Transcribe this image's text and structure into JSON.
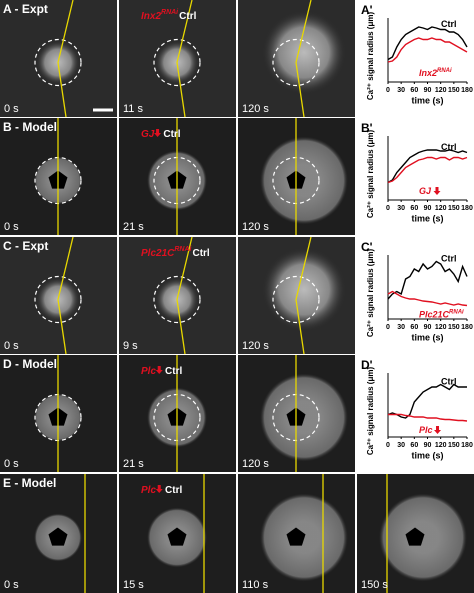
{
  "figure": {
    "rows": [
      {
        "label": "A - Expt",
        "frames": [
          {
            "time": "0 s"
          },
          {
            "time": "11 s",
            "annotation": {
              "mutant": "Inx2",
              "sup": "RNAi",
              "control": "Ctrl"
            }
          },
          {
            "time": "120 s"
          }
        ]
      },
      {
        "label": "B - Model",
        "frames": [
          {
            "time": "0 s"
          },
          {
            "time": "21 s",
            "annotation": {
              "mutant": "GJ",
              "control": "Ctrl"
            }
          },
          {
            "time": "120 s"
          }
        ]
      },
      {
        "label": "C - Expt",
        "frames": [
          {
            "time": "0 s"
          },
          {
            "time": "9 s",
            "annotation": {
              "mutant": "Plc21C",
              "sup": "RNAi",
              "control": "Ctrl"
            }
          },
          {
            "time": "120 s"
          }
        ]
      },
      {
        "label": "D - Model",
        "frames": [
          {
            "time": "0 s"
          },
          {
            "time": "21 s",
            "annotation": {
              "mutant": "Plc",
              "control": "Ctrl"
            }
          },
          {
            "time": "120 s"
          }
        ]
      },
      {
        "label": "E - Model",
        "frames": [
          {
            "time": "0 s"
          },
          {
            "time": "15 s",
            "annotation": {
              "mutant": "Plc",
              "control": "Ctrl"
            }
          },
          {
            "time": "110 s"
          },
          {
            "time": "150 s"
          }
        ]
      }
    ]
  },
  "chart_data": [
    {
      "type": "line",
      "title": "A'",
      "ylabel": "Ca²⁺ signal radius (μm)",
      "xlabel": "time (s)",
      "x": [
        0,
        10,
        20,
        30,
        40,
        50,
        60,
        70,
        80,
        90,
        100,
        110,
        120,
        130,
        140,
        150,
        160,
        170,
        180
      ],
      "xlim": [
        0,
        180
      ],
      "xticks": [
        0,
        30,
        60,
        90,
        120,
        150,
        180
      ],
      "ylim": [
        0,
        120
      ],
      "series": [
        {
          "name": "Ctrl",
          "color": "#000000",
          "values": [
            45,
            50,
            70,
            85,
            95,
            100,
            105,
            110,
            108,
            105,
            110,
            108,
            105,
            105,
            100,
            100,
            95,
            85,
            70
          ]
        },
        {
          "name": "Inx2",
          "name_sup": "RNAi",
          "color": "#e01020",
          "values": [
            40,
            42,
            50,
            65,
            75,
            80,
            85,
            88,
            85,
            85,
            88,
            85,
            85,
            80,
            80,
            75,
            70,
            65,
            60
          ]
        }
      ]
    },
    {
      "type": "line",
      "title": "B'",
      "ylabel": "Ca²⁺ signal radius (μm)",
      "xlabel": "time (s)",
      "x": [
        0,
        10,
        20,
        30,
        40,
        50,
        60,
        70,
        80,
        90,
        100,
        110,
        120,
        130,
        140,
        150,
        160,
        170,
        180
      ],
      "xlim": [
        0,
        180
      ],
      "xticks": [
        0,
        30,
        60,
        90,
        120,
        150,
        180
      ],
      "ylim": [
        0,
        120
      ],
      "series": [
        {
          "name": "Ctrl",
          "color": "#000000",
          "values": [
            35,
            40,
            55,
            65,
            75,
            85,
            90,
            95,
            98,
            100,
            100,
            100,
            98,
            98,
            100,
            98,
            95,
            98,
            95
          ]
        },
        {
          "name": "GJ",
          "color": "#e01020",
          "values": [
            35,
            38,
            45,
            55,
            65,
            70,
            75,
            80,
            82,
            85,
            85,
            82,
            85,
            85,
            80,
            85,
            85,
            82,
            85
          ]
        }
      ]
    },
    {
      "type": "line",
      "title": "C'",
      "ylabel": "Ca²⁺ signal radius (μm)",
      "xlabel": "time (s)",
      "x": [
        0,
        10,
        20,
        30,
        40,
        50,
        60,
        70,
        80,
        90,
        100,
        110,
        120,
        130,
        140,
        150,
        160,
        170,
        180
      ],
      "xlim": [
        0,
        180
      ],
      "xticks": [
        0,
        30,
        60,
        90,
        120,
        150,
        180
      ],
      "ylim": [
        0,
        120
      ],
      "series": [
        {
          "name": "Ctrl",
          "color": "#000000",
          "values": [
            40,
            50,
            55,
            50,
            80,
            85,
            100,
            95,
            110,
            100,
            105,
            115,
            110,
            95,
            100,
            90,
            75,
            105,
            85
          ]
        },
        {
          "name": "Plc21C",
          "name_sup": "RNAi",
          "color": "#e01020",
          "values": [
            50,
            55,
            50,
            45,
            42,
            40,
            40,
            38,
            36,
            35,
            34,
            32,
            30,
            32,
            30,
            28,
            30,
            28,
            27
          ]
        }
      ]
    },
    {
      "type": "line",
      "title": "D'",
      "ylabel": "Ca²⁺ signal radius (μm)",
      "xlabel": "time (s)",
      "x": [
        0,
        10,
        20,
        30,
        40,
        50,
        60,
        70,
        80,
        90,
        100,
        110,
        120,
        130,
        140,
        150,
        160,
        170,
        180
      ],
      "xlim": [
        0,
        180
      ],
      "xticks": [
        0,
        30,
        60,
        90,
        120,
        150,
        180
      ],
      "ylim": [
        0,
        120
      ],
      "series": [
        {
          "name": "Ctrl",
          "color": "#000000",
          "values": [
            45,
            48,
            45,
            40,
            38,
            45,
            70,
            80,
            90,
            95,
            100,
            100,
            105,
            100,
            95,
            105,
            100,
            100,
            100
          ]
        },
        {
          "name": "Plc",
          "color": "#e01020",
          "values": [
            45,
            45,
            45,
            45,
            43,
            42,
            40,
            40,
            40,
            38,
            38,
            38,
            36,
            35,
            35,
            34,
            33,
            33,
            32
          ]
        }
      ]
    }
  ]
}
